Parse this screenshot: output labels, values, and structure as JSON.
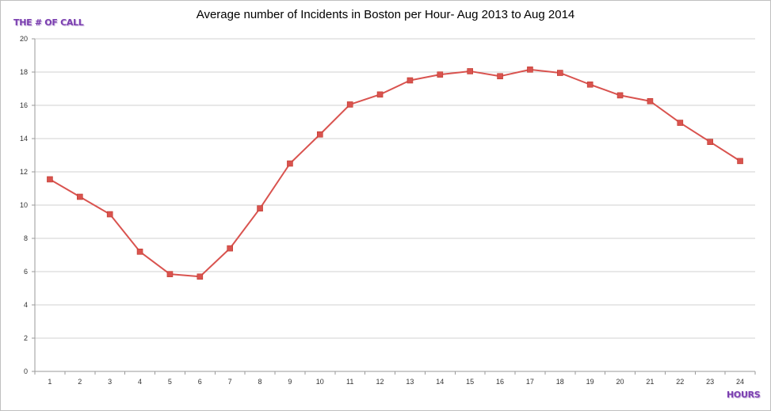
{
  "chart_data": {
    "type": "line",
    "title": "Average number of Incidents in Boston per Hour- Aug 2013 to Aug 2014",
    "ylabel": "THE # OF CALL",
    "xlabel": "HOURS",
    "categories": [
      "1",
      "2",
      "3",
      "4",
      "5",
      "6",
      "7",
      "8",
      "9",
      "10",
      "11",
      "12",
      "13",
      "14",
      "15",
      "16",
      "17",
      "18",
      "19",
      "20",
      "21",
      "22",
      "23",
      "24"
    ],
    "series": [
      {
        "values": [
          11.55,
          10.5,
          9.45,
          7.2,
          5.85,
          5.7,
          7.4,
          9.8,
          12.5,
          14.25,
          16.05,
          16.65,
          17.5,
          17.85,
          18.05,
          17.75,
          18.15,
          17.95,
          17.25,
          16.6,
          16.25,
          14.95,
          13.8,
          12.65
        ]
      }
    ],
    "ylim": [
      0,
      20
    ],
    "yticks": [
      "0",
      "2",
      "4",
      "6",
      "8",
      "10",
      "12",
      "14",
      "16",
      "18",
      "20"
    ],
    "grid": true,
    "legend": "none",
    "series_color": "#d9534f",
    "marker": "square"
  }
}
